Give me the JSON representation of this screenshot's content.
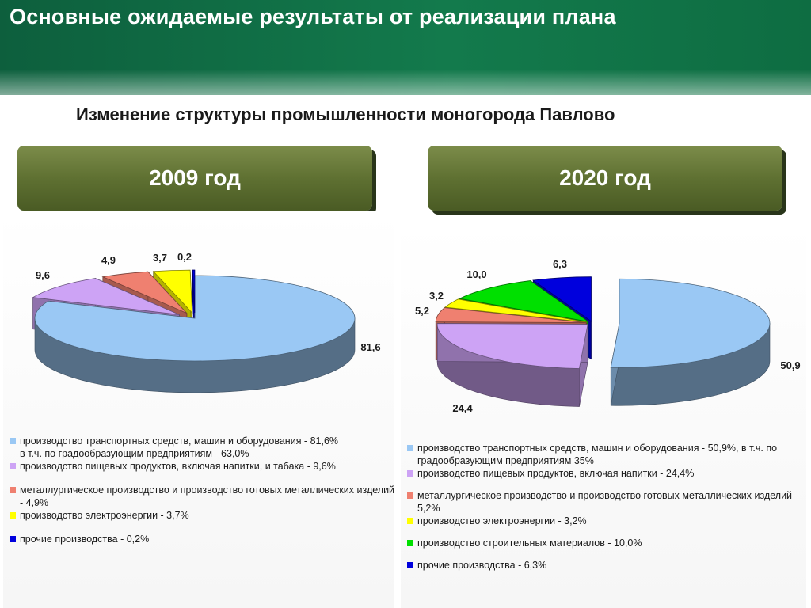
{
  "title": "Основные ожидаемые результаты от реализации плана",
  "subtitle": "Изменение структуры промышленности моногорода  Павлово",
  "chart_data": [
    {
      "type": "pie",
      "title": "2009 год",
      "slices": [
        {
          "label": "81,6",
          "value": 81.6,
          "color": "#9ac8f4",
          "legend": "производство транспортных средств, машин и оборудования - 81,6%\nв т.ч. по градообразующим предприятиям - 63,0%"
        },
        {
          "label": "9,6",
          "value": 9.6,
          "color": "#cda3f5",
          "legend": "производство пищевых продуктов, включая напитки, и табака - 9,6%"
        },
        {
          "label": "4,9",
          "value": 4.9,
          "color": "#ef8070",
          "legend": "металлургическое производство и производство готовых металлических изделий - 4,9%"
        },
        {
          "label": "3,7",
          "value": 3.7,
          "color": "#ffff00",
          "legend": "производство электроэнергии - 3,7%"
        },
        {
          "label": "0,2",
          "value": 0.2,
          "color": "#0000dd",
          "legend": "прочие производства - 0,2%"
        }
      ]
    },
    {
      "type": "pie",
      "title": "2020 год",
      "slices": [
        {
          "label": "50,9",
          "value": 50.9,
          "color": "#9ac8f4",
          "legend": "производство транспортных средств, машин и оборудования - 50,9%, в т.ч. по градообразующим предприятиям 35%"
        },
        {
          "label": "24,4",
          "value": 24.4,
          "color": "#cda3f5",
          "legend": "производство пищевых продуктов, включая напитки - 24,4%"
        },
        {
          "label": "5,2",
          "value": 5.2,
          "color": "#ef8070",
          "legend": "металлургическое производство и производство готовых металлических изделий - 5,2%"
        },
        {
          "label": "3,2",
          "value": 3.2,
          "color": "#ffff00",
          "legend": "производство электроэнергии - 3,2%"
        },
        {
          "label": "10,0",
          "value": 10.0,
          "color": "#00e000",
          "legend": "производство строительных материалов - 10,0%"
        },
        {
          "label": "6,3",
          "value": 6.3,
          "color": "#0000dd",
          "legend": "прочие производства - 6,3%"
        }
      ]
    }
  ]
}
